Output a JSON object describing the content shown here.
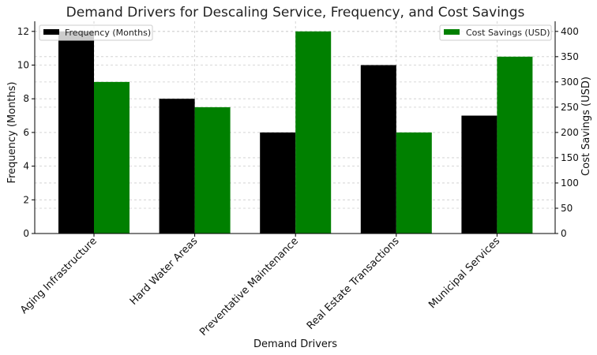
{
  "chart_data": {
    "type": "bar",
    "title": "Demand Drivers for Descaling Service, Frequency, and Cost Savings",
    "xlabel": "Demand Drivers",
    "ylabel_left": "Frequency (Months)",
    "ylabel_right": "Cost Savings (USD)",
    "categories": [
      "Aging Infrastructure",
      "Hard Water Areas",
      "Preventative Maintenance",
      "Real Estate Transactions",
      "Municipal Services"
    ],
    "series": [
      {
        "name": "Frequency (Months)",
        "axis": "left",
        "color": "#000000",
        "values": [
          12,
          8,
          6,
          10,
          7
        ]
      },
      {
        "name": "Cost Savings (USD)",
        "axis": "right",
        "color": "#008000",
        "values": [
          300,
          250,
          400,
          200,
          350
        ]
      }
    ],
    "ylim_left": [
      0,
      12.6
    ],
    "ylim_right": [
      0,
      420
    ],
    "yticks_left": [
      0,
      2,
      4,
      6,
      8,
      10,
      12
    ],
    "yticks_right": [
      0,
      50,
      100,
      150,
      200,
      250,
      300,
      350,
      400
    ],
    "grid": true,
    "legend_left_placement": "top-left",
    "legend_right_placement": "top-right"
  }
}
